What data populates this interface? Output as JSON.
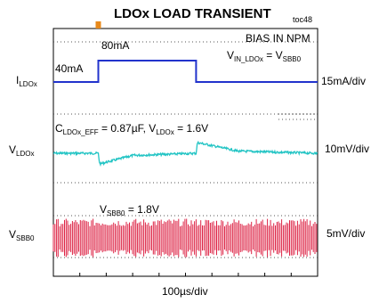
{
  "chart_data": {
    "type": "line",
    "title": "LDOx LOAD TRANSIENT",
    "figure_tag": "toc48",
    "xlabel": "100µs/div",
    "x_divisions": 10,
    "annotations": {
      "bias": "BIAS IN NPM",
      "vin": {
        "main": "V",
        "sub": "IN_LDOx",
        "eq": " = V",
        "sub2": "SBB0"
      },
      "cap": {
        "c": "C",
        "csub": "LDOx_EFF",
        "c_rest": " = 0.87µF, V",
        "vsub": "LDOx",
        "v_rest": " = 1.6V"
      },
      "low_current": "40mA",
      "high_current": "80mA",
      "vsbb0_level": {
        "main": "V",
        "sub": "SBB0",
        "rest": " = 1.8V"
      }
    },
    "series": [
      {
        "name": "I_LDOx",
        "left_label": {
          "main": "I",
          "sub": "LDOx"
        },
        "scale": "15mA/div",
        "color": "#2233cc",
        "unit": "mA",
        "points": [
          [
            0,
            40
          ],
          [
            1.7,
            40
          ],
          [
            1.7,
            80
          ],
          [
            5.4,
            80
          ],
          [
            5.4,
            40
          ],
          [
            10,
            40
          ]
        ]
      },
      {
        "name": "V_LDOx",
        "left_label": {
          "main": "V",
          "sub": "LDOx"
        },
        "scale": "10mV/div",
        "color": "#22c4c4",
        "unit": "mV (AC)",
        "points": [
          [
            0,
            0
          ],
          [
            1.7,
            0
          ],
          [
            1.75,
            -5
          ],
          [
            3,
            -1
          ],
          [
            5.4,
            0
          ],
          [
            5.45,
            5
          ],
          [
            7,
            1
          ],
          [
            10,
            0
          ]
        ]
      },
      {
        "name": "V_SBB0",
        "left_label": {
          "main": "V",
          "sub": "SBB0"
        },
        "scale": "5mV/div",
        "color": "#dd2244",
        "unit": "mV (AC ripple)",
        "ripple_pp": 9
      }
    ]
  }
}
